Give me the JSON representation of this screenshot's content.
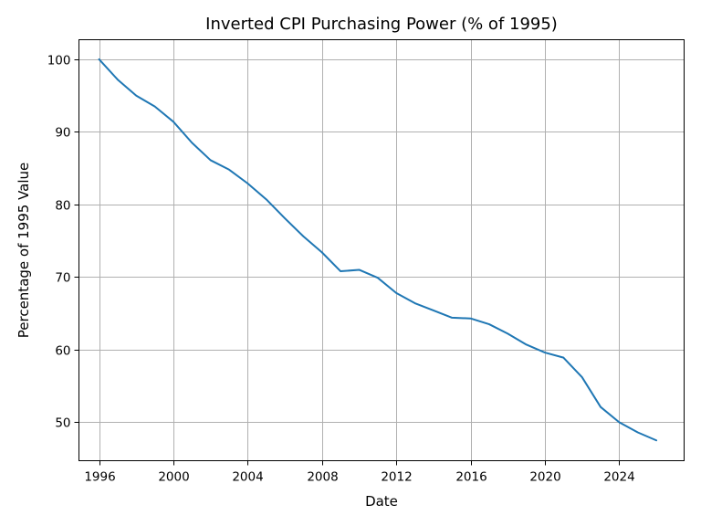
{
  "chart_data": {
    "type": "line",
    "title": "Inverted CPI Purchasing Power (% of 1995)",
    "xlabel": "Date",
    "ylabel": "Percentage of 1995 Value",
    "x_is_date": true,
    "xlim": [
      "1994-12-01",
      "2027-07-01"
    ],
    "ylim": [
      44.7,
      102.7
    ],
    "x_ticks": [
      {
        "value": "1996-01-01",
        "label": "1996"
      },
      {
        "value": "2000-01-01",
        "label": "2000"
      },
      {
        "value": "2004-01-01",
        "label": "2004"
      },
      {
        "value": "2008-01-01",
        "label": "2008"
      },
      {
        "value": "2012-01-01",
        "label": "2012"
      },
      {
        "value": "2016-01-01",
        "label": "2016"
      },
      {
        "value": "2020-01-01",
        "label": "2020"
      },
      {
        "value": "2024-01-01",
        "label": "2024"
      }
    ],
    "y_ticks": [
      {
        "value": 50,
        "label": "50"
      },
      {
        "value": 60,
        "label": "60"
      },
      {
        "value": 70,
        "label": "70"
      },
      {
        "value": 80,
        "label": "80"
      },
      {
        "value": 90,
        "label": "90"
      },
      {
        "value": 100,
        "label": "100"
      }
    ],
    "grid": true,
    "series": [
      {
        "color": "#1f77b4",
        "x": [
          "1996-01-01",
          "1997-01-01",
          "1998-01-01",
          "1999-01-01",
          "2000-01-01",
          "2001-01-01",
          "2002-01-01",
          "2003-01-01",
          "2004-01-01",
          "2005-01-01",
          "2006-01-01",
          "2007-01-01",
          "2008-01-01",
          "2009-01-01",
          "2010-01-01",
          "2011-01-01",
          "2012-01-01",
          "2013-01-01",
          "2014-01-01",
          "2015-01-01",
          "2016-01-01",
          "2017-01-01",
          "2018-01-01",
          "2019-01-01",
          "2020-01-01",
          "2021-01-01",
          "2022-01-01",
          "2023-01-01",
          "2024-01-01",
          "2025-01-01",
          "2026-01-01"
        ],
        "y": [
          100.0,
          97.2,
          95.0,
          93.5,
          91.4,
          88.5,
          86.1,
          84.8,
          82.9,
          80.7,
          78.1,
          75.6,
          73.4,
          70.8,
          71.0,
          69.9,
          67.8,
          66.4,
          65.4,
          64.4,
          64.3,
          63.5,
          62.2,
          60.7,
          59.6,
          58.9,
          56.2,
          52.1,
          50.0,
          48.6,
          47.5
        ]
      }
    ]
  }
}
